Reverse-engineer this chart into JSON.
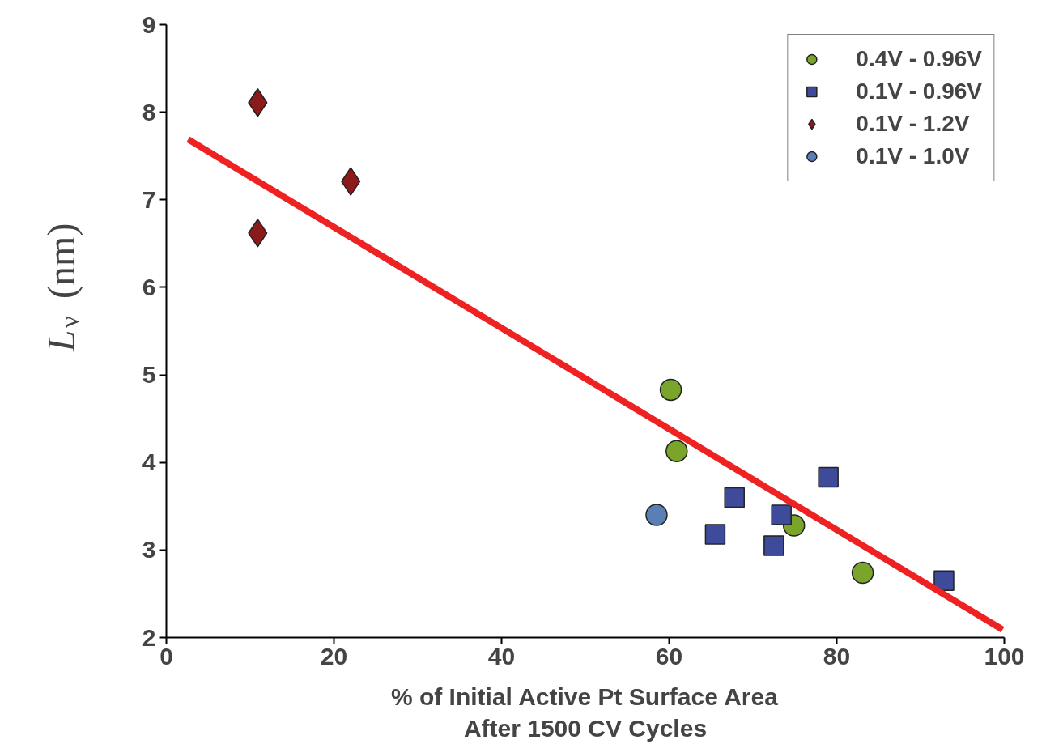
{
  "chart_data": {
    "type": "scatter",
    "xlabel": "% of Initial Active Pt Surface Area\nAfter 1500 CV Cycles",
    "ylabel": "L$_{ν}$ (nm)",
    "xlim": [
      0,
      100
    ],
    "xticks": [
      0,
      20,
      40,
      60,
      80,
      100
    ],
    "ylim": [
      2,
      9
    ],
    "yticks": [
      2,
      3,
      4,
      5,
      6,
      7,
      8,
      9
    ],
    "grid": false,
    "legend": "top right",
    "series": [
      {
        "name": "0.4V - 0.96V",
        "color": "#7aa52a",
        "marker": "circle",
        "x": [
          60.2,
          60.9,
          74.9,
          83.1
        ],
        "values": [
          4.83,
          4.13,
          3.28,
          2.74
        ]
      },
      {
        "name": "0.1V - 0.96V",
        "color": "#3e4a9a",
        "marker": "square",
        "x": [
          67.8,
          65.5,
          72.5,
          73.4,
          79.0,
          92.8
        ],
        "values": [
          3.6,
          3.18,
          3.05,
          3.4,
          3.83,
          2.65
        ]
      },
      {
        "name": "0.1V - 1.2V",
        "color": "#8b1a1a",
        "marker": "diamond",
        "x": [
          10.9,
          10.9,
          22.0
        ],
        "values": [
          8.11,
          6.62,
          7.21
        ]
      },
      {
        "name": "0.1V - 1.0V",
        "color": "#5a7fb5",
        "marker": "circle",
        "x": [
          58.5
        ],
        "values": [
          3.4
        ]
      },
      {
        "type": "line",
        "color": "#ee2222",
        "x": [
          2.6,
          99.8
        ],
        "values": [
          7.69,
          2.09
        ]
      }
    ]
  }
}
